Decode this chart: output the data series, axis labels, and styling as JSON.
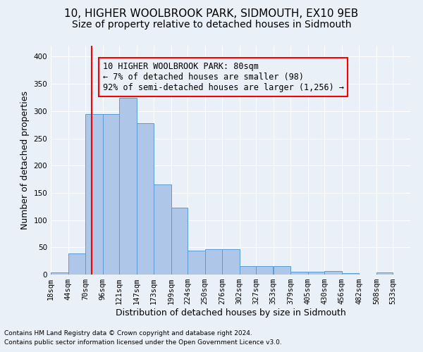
{
  "title1": "10, HIGHER WOOLBROOK PARK, SIDMOUTH, EX10 9EB",
  "title2": "Size of property relative to detached houses in Sidmouth",
  "xlabel": "Distribution of detached houses by size in Sidmouth",
  "ylabel": "Number of detached properties",
  "footnote1": "Contains HM Land Registry data © Crown copyright and database right 2024.",
  "footnote2": "Contains public sector information licensed under the Open Government Licence v3.0.",
  "annotation_line1": "10 HIGHER WOOLBROOK PARK: 80sqm",
  "annotation_line2": "← 7% of detached houses are smaller (98)",
  "annotation_line3": "92% of semi-detached houses are larger (1,256) →",
  "bar_left_edges": [
    18,
    44,
    70,
    96,
    121,
    147,
    173,
    199,
    224,
    250,
    276,
    302,
    327,
    353,
    379,
    405,
    430,
    456,
    482,
    508
  ],
  "bar_widths": [
    26,
    26,
    26,
    25,
    26,
    26,
    26,
    25,
    26,
    26,
    26,
    25,
    25,
    26,
    26,
    25,
    26,
    26,
    26,
    25
  ],
  "bar_heights": [
    4,
    39,
    295,
    295,
    325,
    278,
    165,
    123,
    44,
    46,
    46,
    15,
    15,
    15,
    5,
    5,
    6,
    3,
    0,
    4
  ],
  "bar_color": "#aec6e8",
  "bar_edge_color": "#5b9bd5",
  "redline_x": 80,
  "ylim": [
    0,
    420
  ],
  "yticks": [
    0,
    50,
    100,
    150,
    200,
    250,
    300,
    350,
    400
  ],
  "xtick_labels": [
    "18sqm",
    "44sqm",
    "70sqm",
    "96sqm",
    "121sqm",
    "147sqm",
    "173sqm",
    "199sqm",
    "224sqm",
    "250sqm",
    "276sqm",
    "302sqm",
    "327sqm",
    "353sqm",
    "379sqm",
    "405sqm",
    "430sqm",
    "456sqm",
    "482sqm",
    "508sqm",
    "533sqm"
  ],
  "xtick_positions": [
    18,
    44,
    70,
    96,
    121,
    147,
    173,
    199,
    224,
    250,
    276,
    302,
    327,
    353,
    379,
    405,
    430,
    456,
    482,
    508,
    533
  ],
  "bg_color": "#eaf0f8",
  "grid_color": "#ffffff",
  "title_fontsize": 11,
  "subtitle_fontsize": 10,
  "axis_label_fontsize": 9,
  "tick_fontsize": 7.5,
  "annotation_fontsize": 8.5,
  "footnote_fontsize": 6.5
}
